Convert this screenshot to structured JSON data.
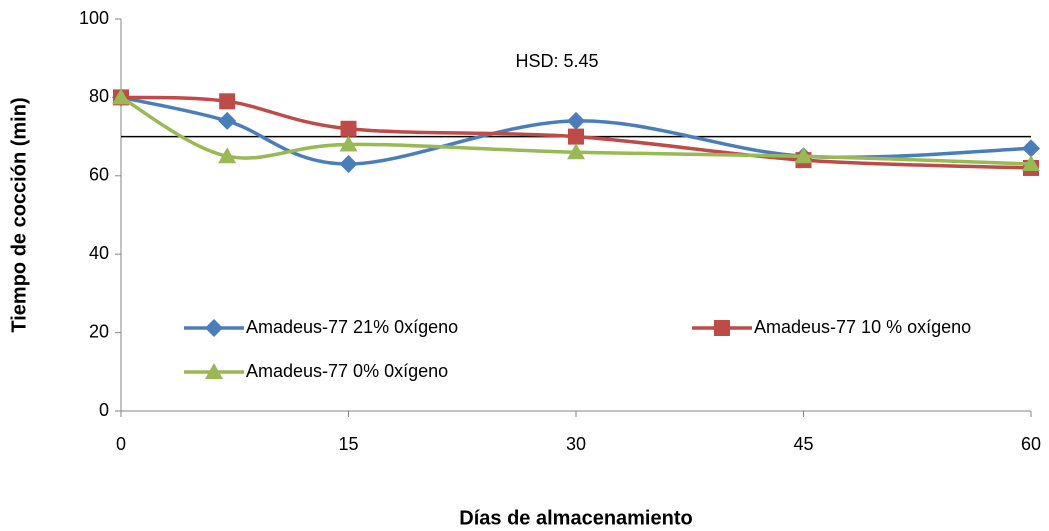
{
  "chart_data": {
    "type": "line",
    "x": [
      0,
      7,
      15,
      30,
      45,
      60
    ],
    "series": [
      {
        "name": "Amadeus-77 21% 0xígeno",
        "color": "#4a7ebb",
        "marker": "diamond",
        "values": [
          80,
          74,
          63,
          74,
          65,
          67
        ]
      },
      {
        "name": "Amadeus-77 10 % oxígeno",
        "color": "#be4b48",
        "marker": "square",
        "values": [
          80,
          79,
          72,
          70,
          64,
          62
        ]
      },
      {
        "name": "Amadeus-77 0% 0xígeno",
        "color": "#98b954",
        "marker": "triangle",
        "values": [
          80,
          65,
          68,
          66,
          65,
          63
        ]
      }
    ],
    "xlim": [
      0,
      60
    ],
    "xticks": [
      0,
      15,
      30,
      45,
      60
    ],
    "ylim": [
      0,
      100
    ],
    "yticks": [
      0,
      20,
      40,
      60,
      80,
      100
    ],
    "xlabel": "Días de almacenamiento",
    "ylabel": "Tiempo de cocción (min)",
    "annotation": "HSD:  5.45",
    "reference_line": 70,
    "smooth": true
  }
}
